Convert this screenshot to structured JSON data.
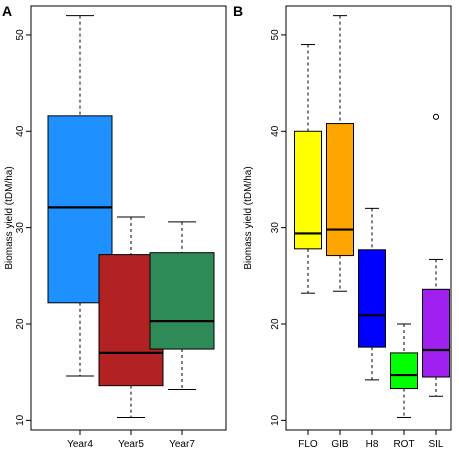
{
  "chart_data": [
    {
      "type": "box",
      "panel_label": "A",
      "ylabel": "Biomass yield (tDM/ha)",
      "ylim": [
        9,
        53
      ],
      "yticks": [
        10,
        20,
        30,
        40,
        50
      ],
      "categories": [
        "Year4",
        "Year5",
        "Year7"
      ],
      "colors": [
        "#1E90FF",
        "#B22222",
        "#2E8B57"
      ],
      "boxes": [
        {
          "min": 14.6,
          "q1": 22.2,
          "median": 32.1,
          "q3": 41.6,
          "max": 52.0,
          "outliers": []
        },
        {
          "min": 10.3,
          "q1": 13.6,
          "median": 17.0,
          "q3": 27.2,
          "max": 31.1,
          "outliers": []
        },
        {
          "min": 13.2,
          "q1": 17.4,
          "median": 20.3,
          "q3": 27.4,
          "max": 30.6,
          "outliers": []
        }
      ]
    },
    {
      "type": "box",
      "panel_label": "B",
      "ylabel": "Biomass yield (tDM/ha)",
      "ylim": [
        9,
        53
      ],
      "yticks": [
        10,
        20,
        30,
        40,
        50
      ],
      "categories": [
        "FLO",
        "GIB",
        "H8",
        "ROT",
        "SIL"
      ],
      "colors": [
        "#FFFF00",
        "#FFA500",
        "#0000FF",
        "#00FF00",
        "#A020F0"
      ],
      "boxes": [
        {
          "min": 23.2,
          "q1": 27.8,
          "median": 29.4,
          "q3": 40.0,
          "max": 49.0,
          "outliers": []
        },
        {
          "min": 23.4,
          "q1": 27.1,
          "median": 29.8,
          "q3": 40.8,
          "max": 52.0,
          "outliers": []
        },
        {
          "min": 14.2,
          "q1": 17.6,
          "median": 20.9,
          "q3": 27.7,
          "max": 32.0,
          "outliers": []
        },
        {
          "min": 10.3,
          "q1": 13.3,
          "median": 14.7,
          "q3": 17.0,
          "max": 20.0,
          "outliers": []
        },
        {
          "min": 12.5,
          "q1": 14.5,
          "median": 17.3,
          "q3": 23.6,
          "max": 26.7,
          "outliers": [
            41.5
          ]
        }
      ]
    }
  ]
}
